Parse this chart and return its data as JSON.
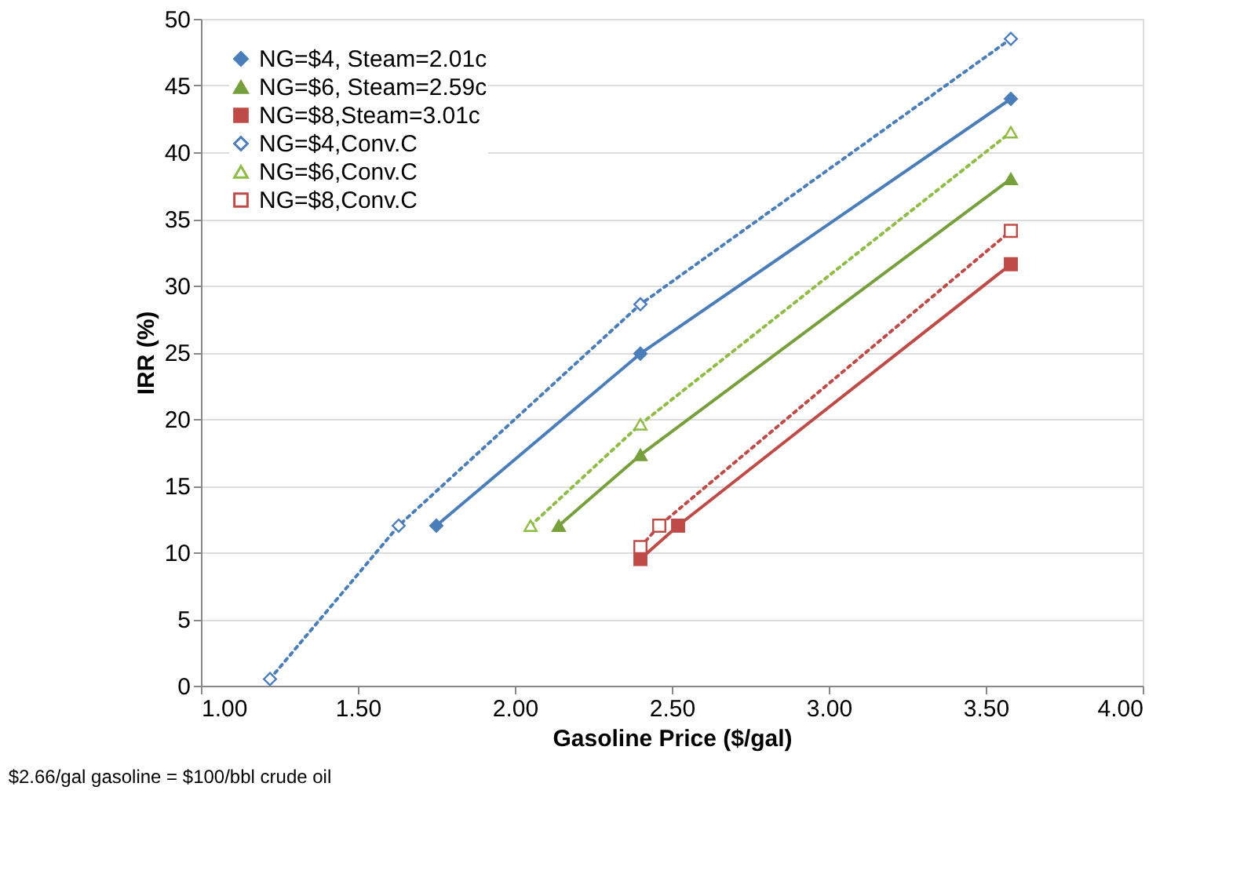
{
  "chart_data": {
    "type": "line",
    "xlabel": "Gasoline Price ($/gal)",
    "ylabel": "IRR (%)",
    "annotations": [
      "$2.66/gal gasoline = $100/bbl crude oil"
    ],
    "xlim": [
      1,
      4
    ],
    "ylim": [
      0,
      50
    ],
    "xticks": [
      {
        "value": 1,
        "label": "1.00"
      },
      {
        "value": 1.5,
        "label": "1.50"
      },
      {
        "value": 2,
        "label": "2.00"
      },
      {
        "value": 2.5,
        "label": "2.50"
      },
      {
        "value": 3,
        "label": "3.00"
      },
      {
        "value": 3.5,
        "label": "3.50"
      },
      {
        "value": 4,
        "label": "4.00"
      }
    ],
    "yticks": [
      0,
      5,
      10,
      15,
      20,
      25,
      30,
      35,
      40,
      45,
      50
    ],
    "grid": "y",
    "legend": "top left",
    "series": [
      {
        "name": "NG=$4, Steam=2.01c",
        "color": "#4a7ebb",
        "marker": "diamond",
        "line_style": "solid",
        "x": [
          1.75,
          2.4,
          3.58
        ],
        "values": [
          12,
          24.9,
          44
        ]
      },
      {
        "name": "NG=$6, Steam=2.59c",
        "color": "#77a03c",
        "marker": "triangle",
        "line_style": "solid",
        "x": [
          2.14,
          2.4,
          3.58
        ],
        "values": [
          12,
          17.3,
          38
        ]
      },
      {
        "name": "NG=$8,Steam=3.01c",
        "color": "#be4b48",
        "marker": "square",
        "line_style": "solid",
        "x": [
          2.4,
          2.52,
          3.58
        ],
        "values": [
          9.5,
          12,
          31.6
        ]
      },
      {
        "name": "NG=$4,Conv.C",
        "color": "#4a7ebb",
        "marker": "diamond",
        "line_style": "dotted",
        "x": [
          1.22,
          1.63,
          2.4,
          3.58
        ],
        "values": [
          0.5,
          12,
          28.6,
          48.5
        ]
      },
      {
        "name": "NG=$6,Conv.C",
        "color": "#8fbc45",
        "marker": "triangle",
        "line_style": "dotted",
        "x": [
          2.05,
          2.4,
          3.58
        ],
        "values": [
          12,
          19.6,
          41.5
        ]
      },
      {
        "name": "NG=$8,Conv.C",
        "color": "#be4b48",
        "marker": "square",
        "line_style": "dotted",
        "x": [
          2.4,
          2.46,
          3.58
        ],
        "values": [
          10.4,
          12,
          34.1
        ]
      }
    ]
  }
}
